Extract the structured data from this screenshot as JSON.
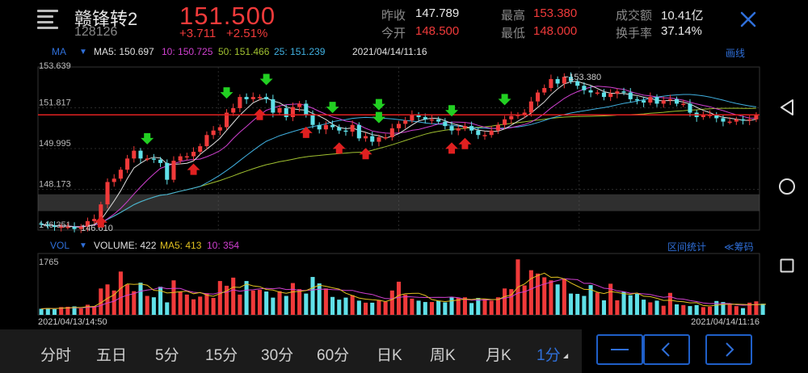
{
  "header": {
    "stock_name": "赣锋转2",
    "stock_code": "128126",
    "price": "151.500",
    "change": "+3.711",
    "change_pct": "+2.51%",
    "quotes": [
      {
        "label": "昨收",
        "value": "147.789",
        "color": "#e8e8e8"
      },
      {
        "label": "今开",
        "value": "148.500",
        "color": "#f03a3a"
      },
      {
        "label": "最高",
        "value": "153.380",
        "color": "#f03a3a"
      },
      {
        "label": "最低",
        "value": "148.000",
        "color": "#f03a3a"
      },
      {
        "label": "成交额",
        "value": "10.41亿",
        "color": "#e8e8e8"
      },
      {
        "label": "换手率",
        "value": "37.14%",
        "color": "#e8e8e8"
      }
    ]
  },
  "ma_legend": {
    "label": "MA",
    "ma5": "MA5: 150.697",
    "ma10": "10: 150.725",
    "ma50": "50: 151.466",
    "ma25": "25: 151.239",
    "time": "2021/04/14/11:16",
    "draw_link": "画线"
  },
  "vol_legend": {
    "label": "VOL",
    "volume": "VOLUME: 422",
    "ma5": "MA5: 413",
    "ma10": "10: 354",
    "range_stats": "区间统计",
    "chips": "≪筹码"
  },
  "colors": {
    "up": "#f03a3a",
    "down": "#5fe0e8",
    "ma5": "#e0e0e0",
    "ma10": "#d040d0",
    "ma50": "#a0c030",
    "ma25": "#40b0e0",
    "accent": "#2f6fd9",
    "current_line": "#e02020"
  },
  "chart_data": {
    "type": "candlestick",
    "y_ticks": [
      "153.639",
      "151.817",
      "149.995",
      "148.173",
      "146.351"
    ],
    "ylim": [
      146.351,
      153.639
    ],
    "current_price": 151.5,
    "high_label": "153.380",
    "low_label": "146.610",
    "x_start": "2021/04/13/14:50",
    "x_end": "2021/04/14/11:16",
    "volume_max_label": "1765",
    "volume_ylim": [
      0,
      1765
    ],
    "closes": [
      146.6,
      146.55,
      146.5,
      146.5,
      146.5,
      146.4,
      146.5,
      146.75,
      146.85,
      147.5,
      148.5,
      148.65,
      149.05,
      149.55,
      149.9,
      149.55,
      149.55,
      149.5,
      149.35,
      148.6,
      149.45,
      149.65,
      149.65,
      149.85,
      150.1,
      150.6,
      150.8,
      150.95,
      151.6,
      151.8,
      152.3,
      152.2,
      152.3,
      152.3,
      152.2,
      151.6,
      151.8,
      151.4,
      151.85,
      152.0,
      151.5,
      151.05,
      150.85,
      151.05,
      150.95,
      150.8,
      150.75,
      151.05,
      150.45,
      150.55,
      150.3,
      150.5,
      150.5,
      150.9,
      151.1,
      151.25,
      151.5,
      151.4,
      151.3,
      151.3,
      151.2,
      151.0,
      150.8,
      150.9,
      151.0,
      150.8,
      150.6,
      150.6,
      150.8,
      151.05,
      151.3,
      151.45,
      151.5,
      151.6,
      152.1,
      152.5,
      152.7,
      153.1,
      152.9,
      153.2,
      153.0,
      152.8,
      152.6,
      152.5,
      152.5,
      152.3,
      152.45,
      152.55,
      152.5,
      152.2,
      152.15,
      152.05,
      152.3,
      152.0,
      152.15,
      152.2,
      152.0,
      152.0,
      151.6,
      151.4,
      151.5,
      151.5,
      151.35,
      151.2,
      151.2,
      151.3,
      151.25,
      151.3,
      151.5
    ],
    "volumes": [
      180,
      200,
      170,
      230,
      240,
      250,
      190,
      300,
      260,
      780,
      900,
      720,
      1280,
      900,
      700,
      950,
      560,
      520,
      830,
      370,
      1020,
      680,
      600,
      460,
      540,
      640,
      500,
      1000,
      860,
      1100,
      600,
      1000,
      720,
      740,
      690,
      510,
      700,
      560,
      940,
      760,
      630,
      1120,
      930,
      780,
      530,
      450,
      510,
      580,
      420,
      360,
      360,
      440,
      390,
      720,
      980,
      600,
      480,
      420,
      380,
      380,
      420,
      370,
      520,
      510,
      520,
      350,
      500,
      470,
      420,
      520,
      780,
      760,
      1640,
      870,
      1320,
      1220,
      1110,
      1020,
      900,
      1060,
      630,
      620,
      560,
      880,
      660,
      430,
      920,
      430,
      680,
      580,
      620,
      450,
      370,
      420,
      270,
      650,
      310,
      290,
      260,
      290,
      230,
      240,
      410,
      380,
      300,
      260,
      200,
      360,
      400,
      330,
      300
    ]
  },
  "markers": [
    {
      "kind": "green-down-arrow"
    },
    {
      "kind": "red-up-arrow"
    }
  ],
  "periods": [
    "分时",
    "五日",
    "5分",
    "15分",
    "30分",
    "60分",
    "日K",
    "周K",
    "月K",
    "1分"
  ],
  "active_period": "1分",
  "nav_icons": [
    "minus-icon",
    "chevron-left-icon",
    "chevron-right-icon"
  ],
  "android_nav": [
    "back-triangle-icon",
    "home-circle-icon",
    "recents-square-icon"
  ]
}
